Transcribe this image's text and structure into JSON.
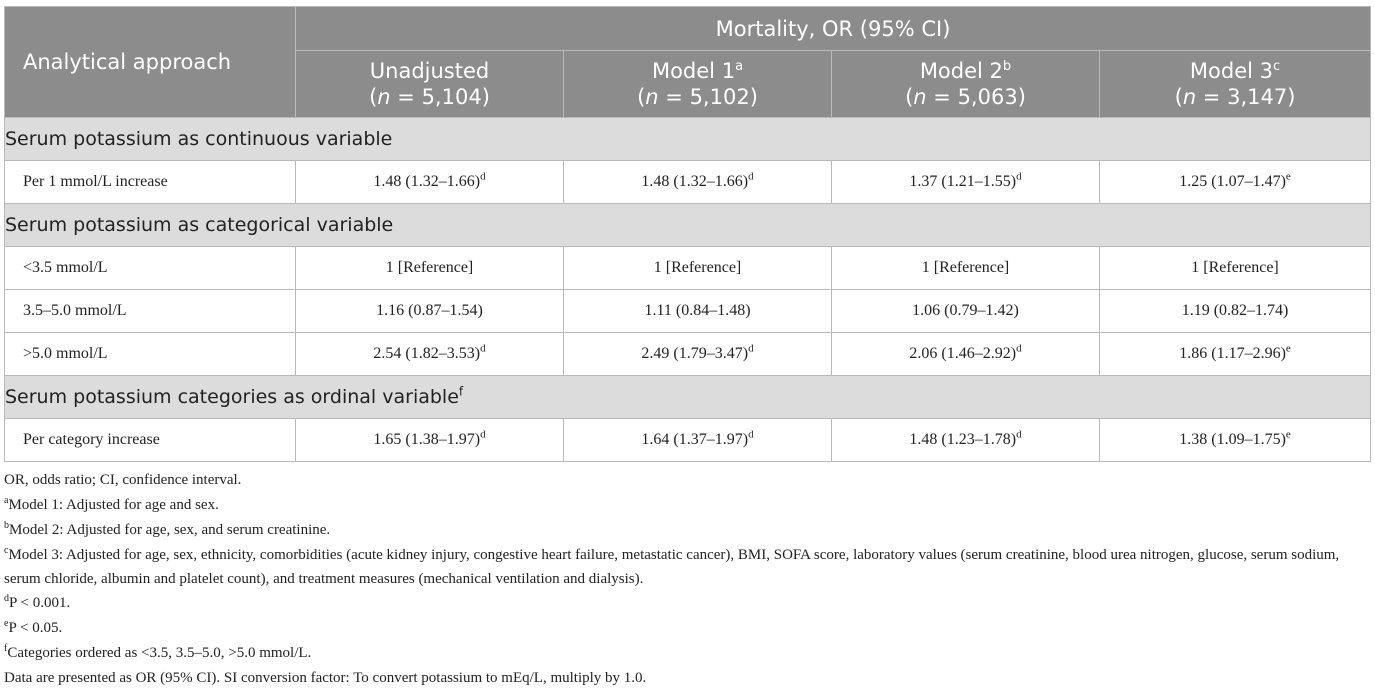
{
  "header": {
    "group": "Mortality, OR (95% CI)",
    "approach": "Analytical approach",
    "models": [
      {
        "name": "Unadjusted",
        "sup": "",
        "n": "5,104"
      },
      {
        "name": "Model 1",
        "sup": "a",
        "n": "5,102"
      },
      {
        "name": "Model 2",
        "sup": "b",
        "n": "5,063"
      },
      {
        "name": "Model 3",
        "sup": "c",
        "n": "3,147"
      }
    ],
    "n_label": "n",
    "n_eq": " = "
  },
  "sections": [
    {
      "title": "Serum potassium as continuous variable",
      "title_sup": "",
      "rows": [
        {
          "label": "Per 1 mmol/L increase",
          "cells": [
            {
              "v": "1.48 (1.32–1.66)",
              "s": "d"
            },
            {
              "v": "1.48 (1.32–1.66)",
              "s": "d"
            },
            {
              "v": "1.37 (1.21–1.55)",
              "s": "d"
            },
            {
              "v": "1.25 (1.07–1.47)",
              "s": "e"
            }
          ]
        }
      ]
    },
    {
      "title": "Serum potassium as categorical variable",
      "title_sup": "",
      "rows": [
        {
          "label": "<3.5 mmol/L",
          "cells": [
            {
              "v": "1 [Reference]",
              "s": ""
            },
            {
              "v": "1 [Reference]",
              "s": ""
            },
            {
              "v": "1 [Reference]",
              "s": ""
            },
            {
              "v": "1 [Reference]",
              "s": ""
            }
          ]
        },
        {
          "label": "3.5–5.0 mmol/L",
          "cells": [
            {
              "v": "1.16 (0.87–1.54)",
              "s": ""
            },
            {
              "v": "1.11 (0.84–1.48)",
              "s": ""
            },
            {
              "v": "1.06 (0.79–1.42)",
              "s": ""
            },
            {
              "v": "1.19 (0.82–1.74)",
              "s": ""
            }
          ]
        },
        {
          "label": ">5.0 mmol/L",
          "cells": [
            {
              "v": "2.54 (1.82–3.53)",
              "s": "d"
            },
            {
              "v": "2.49 (1.79–3.47)",
              "s": "d"
            },
            {
              "v": "2.06 (1.46–2.92)",
              "s": "d"
            },
            {
              "v": "1.86 (1.17–2.96)",
              "s": "e"
            }
          ]
        }
      ]
    },
    {
      "title": "Serum potassium categories as ordinal variable",
      "title_sup": "f",
      "rows": [
        {
          "label": "Per category increase",
          "cells": [
            {
              "v": "1.65 (1.38–1.97)",
              "s": "d"
            },
            {
              "v": "1.64 (1.37–1.97)",
              "s": "d"
            },
            {
              "v": "1.48 (1.23–1.78)",
              "s": "d"
            },
            {
              "v": "1.38 (1.09–1.75)",
              "s": "e"
            }
          ]
        }
      ]
    }
  ],
  "footnotes": [
    {
      "sup": "",
      "text": "OR, odds ratio; CI, confidence interval."
    },
    {
      "sup": "a",
      "text": "Model 1: Adjusted for age and sex."
    },
    {
      "sup": "b",
      "text": "Model 2: Adjusted for age, sex, and serum creatinine."
    },
    {
      "sup": "c",
      "text": "Model 3: Adjusted for age, sex, ethnicity, comorbidities (acute kidney injury, congestive heart failure, metastatic cancer), BMI, SOFA score, laboratory values (serum creatinine, blood urea nitrogen, glucose, serum sodium, serum chloride, albumin and platelet count), and treatment measures (mechanical ventilation and dialysis)."
    },
    {
      "sup": "d",
      "text": "P < 0.001."
    },
    {
      "sup": "e",
      "text": "P < 0.05."
    },
    {
      "sup": "f",
      "text": "Categories ordered as <3.5, 3.5–5.0, >5.0 mmol/L."
    },
    {
      "sup": "",
      "text": "Data are presented as OR (95% CI). SI conversion factor: To convert potassium to mEq/L, multiply by 1.0."
    }
  ],
  "colors": {
    "header_bg": "#8c8c8c",
    "section_bg": "#dcdcdc",
    "border": "#b9b9b9"
  }
}
